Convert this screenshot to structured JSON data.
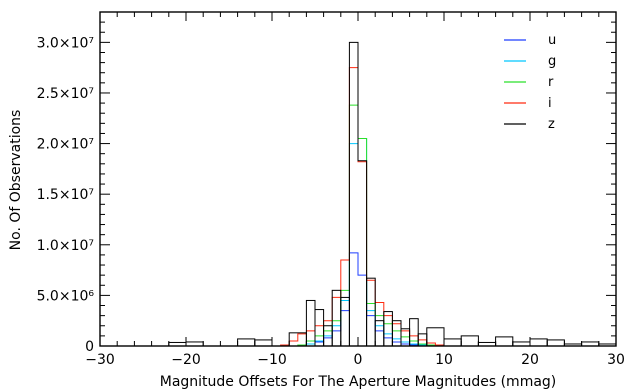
{
  "chart_data": {
    "type": "histogram",
    "xlabel": "Magnitude Offsets For The Aperture Magnitudes (mmag)",
    "ylabel": "No. Of Observations",
    "xlim": [
      -30,
      30
    ],
    "ylim": [
      0,
      33000000
    ],
    "x_ticks": [
      {
        "value": -30,
        "label": "−30"
      },
      {
        "value": -20,
        "label": "−20"
      },
      {
        "value": -10,
        "label": "−10"
      },
      {
        "value": 0,
        "label": "0"
      },
      {
        "value": 10,
        "label": "10"
      },
      {
        "value": 20,
        "label": "20"
      },
      {
        "value": 30,
        "label": "30"
      }
    ],
    "y_ticks": [
      {
        "value": 0,
        "label": "0"
      },
      {
        "value": 5000000,
        "label": "5.0×10⁶"
      },
      {
        "value": 10000000,
        "label": "1.0×10⁷"
      },
      {
        "value": 15000000,
        "label": "1.5×10⁷"
      },
      {
        "value": 20000000,
        "label": "2.0×10⁷"
      },
      {
        "value": 25000000,
        "label": "2.5×10⁷"
      },
      {
        "value": 30000000,
        "label": "3.0×10⁷"
      }
    ],
    "x_minor_step": 2,
    "y_minor_step": 1000000,
    "bin_edges": [
      -14,
      -13,
      -12,
      -11,
      -10,
      -9,
      -8,
      -7,
      -6,
      -5,
      -4,
      -3,
      -2,
      -1,
      0,
      1,
      2,
      3,
      4,
      5,
      6,
      7,
      8,
      9,
      10,
      11,
      12,
      13,
      14
    ],
    "series": [
      {
        "name": "u",
        "color": "#1f3fff",
        "values": [
          0,
          0,
          0,
          0,
          0,
          0,
          0,
          0,
          200000,
          400000,
          800000,
          1500000,
          3500000,
          9200000,
          7000000,
          3000000,
          1500000,
          800000,
          400000,
          200000,
          100000,
          0,
          0,
          0,
          0,
          0,
          0,
          0
        ]
      },
      {
        "name": "g",
        "color": "#00c8ff",
        "values": [
          0,
          0,
          0,
          0,
          0,
          0,
          0,
          0,
          200000,
          500000,
          1000000,
          2000000,
          4500000,
          20000000,
          20500000,
          3500000,
          2000000,
          1200000,
          700000,
          400000,
          200000,
          100000,
          0,
          0,
          0,
          0,
          0,
          0
        ]
      },
      {
        "name": "r",
        "color": "#2be02b",
        "values": [
          0,
          0,
          0,
          0,
          0,
          0,
          0,
          100000,
          500000,
          1000000,
          1500000,
          2500000,
          5500000,
          23800000,
          20500000,
          4200000,
          3000000,
          2200000,
          1500000,
          900000,
          500000,
          200000,
          100000,
          0,
          0,
          0,
          0,
          0
        ]
      },
      {
        "name": "i",
        "color": "#ff2a10",
        "values": [
          0,
          0,
          0,
          0,
          0,
          100000,
          500000,
          1200000,
          1500000,
          2000000,
          2500000,
          4800000,
          8500000,
          27500000,
          18200000,
          6500000,
          4300000,
          3000000,
          2200000,
          1500000,
          1000000,
          600000,
          300000,
          100000,
          0,
          0,
          0,
          0
        ]
      },
      {
        "name": "z",
        "color": "#000000",
        "values": [
          0,
          0,
          0,
          0,
          0,
          0,
          0,
          0,
          0,
          0,
          0,
          0,
          0,
          30000000,
          18300000,
          0,
          0,
          0,
          0,
          0,
          0,
          0,
          0,
          0,
          0,
          0,
          0,
          0
        ]
      }
    ],
    "z_wide_bins": [
      [
        -28,
        -26,
        0
      ],
      [
        -26,
        -24,
        0
      ],
      [
        -24,
        -22,
        0
      ],
      [
        -22,
        -20,
        350000
      ],
      [
        -20,
        -18,
        400000
      ],
      [
        -18,
        -16,
        0
      ],
      [
        -16,
        -14,
        0
      ],
      [
        -14,
        -12,
        700000
      ],
      [
        -12,
        -10,
        600000
      ],
      [
        -10,
        -8,
        0
      ],
      [
        -8,
        -6,
        1300000
      ],
      [
        -6,
        -5,
        4500000
      ],
      [
        -5,
        -4,
        3600000
      ],
      [
        -4,
        -3,
        2000000
      ],
      [
        -3,
        -2,
        5500000
      ],
      [
        -2,
        -1,
        4800000
      ],
      [
        1,
        2,
        6700000
      ],
      [
        2,
        3,
        2500000
      ],
      [
        3,
        4,
        3400000
      ],
      [
        4,
        5,
        2500000
      ],
      [
        5,
        6,
        1700000
      ],
      [
        6,
        7,
        2700000
      ],
      [
        7,
        8,
        1200000
      ],
      [
        8,
        10,
        1800000
      ],
      [
        10,
        12,
        700000
      ],
      [
        12,
        14,
        1000000
      ],
      [
        14,
        16,
        350000
      ],
      [
        16,
        18,
        900000
      ],
      [
        18,
        20,
        400000
      ],
      [
        20,
        22,
        700000
      ],
      [
        22,
        24,
        600000
      ],
      [
        24,
        26,
        200000
      ],
      [
        26,
        28,
        400000
      ],
      [
        28,
        30,
        200000
      ]
    ],
    "legend_position": "top-right"
  }
}
